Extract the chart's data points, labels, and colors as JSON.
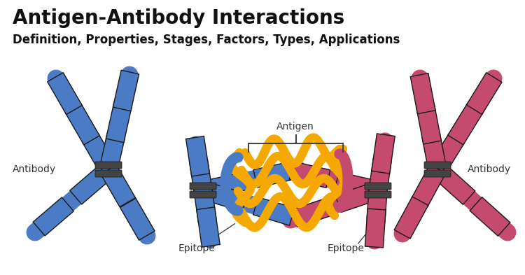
{
  "title": "Antigen-Antibody Interactions",
  "subtitle": "Definition, Properties, Stages, Factors, Types, Applications",
  "title_fontsize": 20,
  "subtitle_fontsize": 12,
  "title_color": "#111111",
  "subtitle_color": "#111111",
  "bg_color": "#ffffff",
  "blue_color": "#4a7bc4",
  "pink_color": "#c44a6e",
  "gold_color": "#f5a800",
  "label_fontsize": 10,
  "label_color": "#333333",
  "hinge_color": "#444444"
}
